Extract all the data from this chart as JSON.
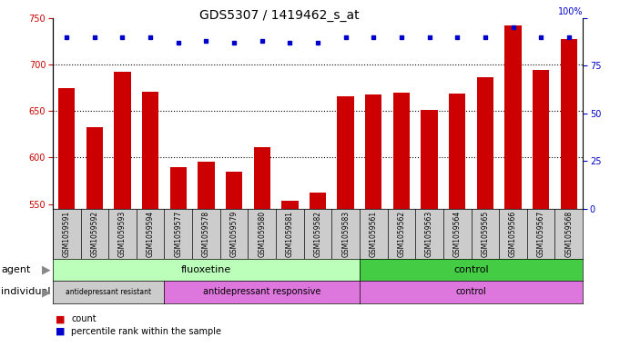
{
  "title": "GDS5307 / 1419462_s_at",
  "samples": [
    "GSM1059591",
    "GSM1059592",
    "GSM1059593",
    "GSM1059594",
    "GSM1059577",
    "GSM1059578",
    "GSM1059579",
    "GSM1059580",
    "GSM1059581",
    "GSM1059582",
    "GSM1059583",
    "GSM1059561",
    "GSM1059562",
    "GSM1059563",
    "GSM1059564",
    "GSM1059565",
    "GSM1059566",
    "GSM1059567",
    "GSM1059568"
  ],
  "counts": [
    675,
    633,
    692,
    671,
    590,
    596,
    585,
    611,
    554,
    562,
    666,
    668,
    670,
    651,
    669,
    686,
    742,
    694,
    727
  ],
  "percentile_ranks": [
    90,
    90,
    90,
    90,
    87,
    88,
    87,
    88,
    87,
    87,
    90,
    90,
    90,
    90,
    90,
    90,
    95,
    90,
    90
  ],
  "bar_color": "#cc0000",
  "dot_color": "#0000cc",
  "ylim_left": [
    545,
    750
  ],
  "ylim_right": [
    0,
    100
  ],
  "yticks_left": [
    550,
    600,
    650,
    700,
    750
  ],
  "yticks_right": [
    0,
    25,
    50,
    75,
    100
  ],
  "agent_fluoxetine_count": 11,
  "agent_control_count": 8,
  "agent_fluoxetine_label": "fluoxetine",
  "agent_control_label": "control",
  "agent_fluoxetine_color": "#bbffbb",
  "agent_control_color": "#44cc44",
  "individual_resistant_count": 4,
  "individual_responsive_count": 7,
  "individual_control_count": 8,
  "individual_resistant_label": "antidepressant resistant",
  "individual_responsive_label": "antidepressant responsive",
  "individual_control_label": "control",
  "individual_resistant_color": "#cccccc",
  "individual_responsive_color": "#dd77dd",
  "individual_control_color": "#dd77dd",
  "xtick_bg_color": "#cccccc",
  "legend_count_label": "count",
  "legend_percentile_label": "percentile rank within the sample",
  "title_fontsize": 10,
  "tick_fontsize": 7,
  "bar_width": 0.6
}
